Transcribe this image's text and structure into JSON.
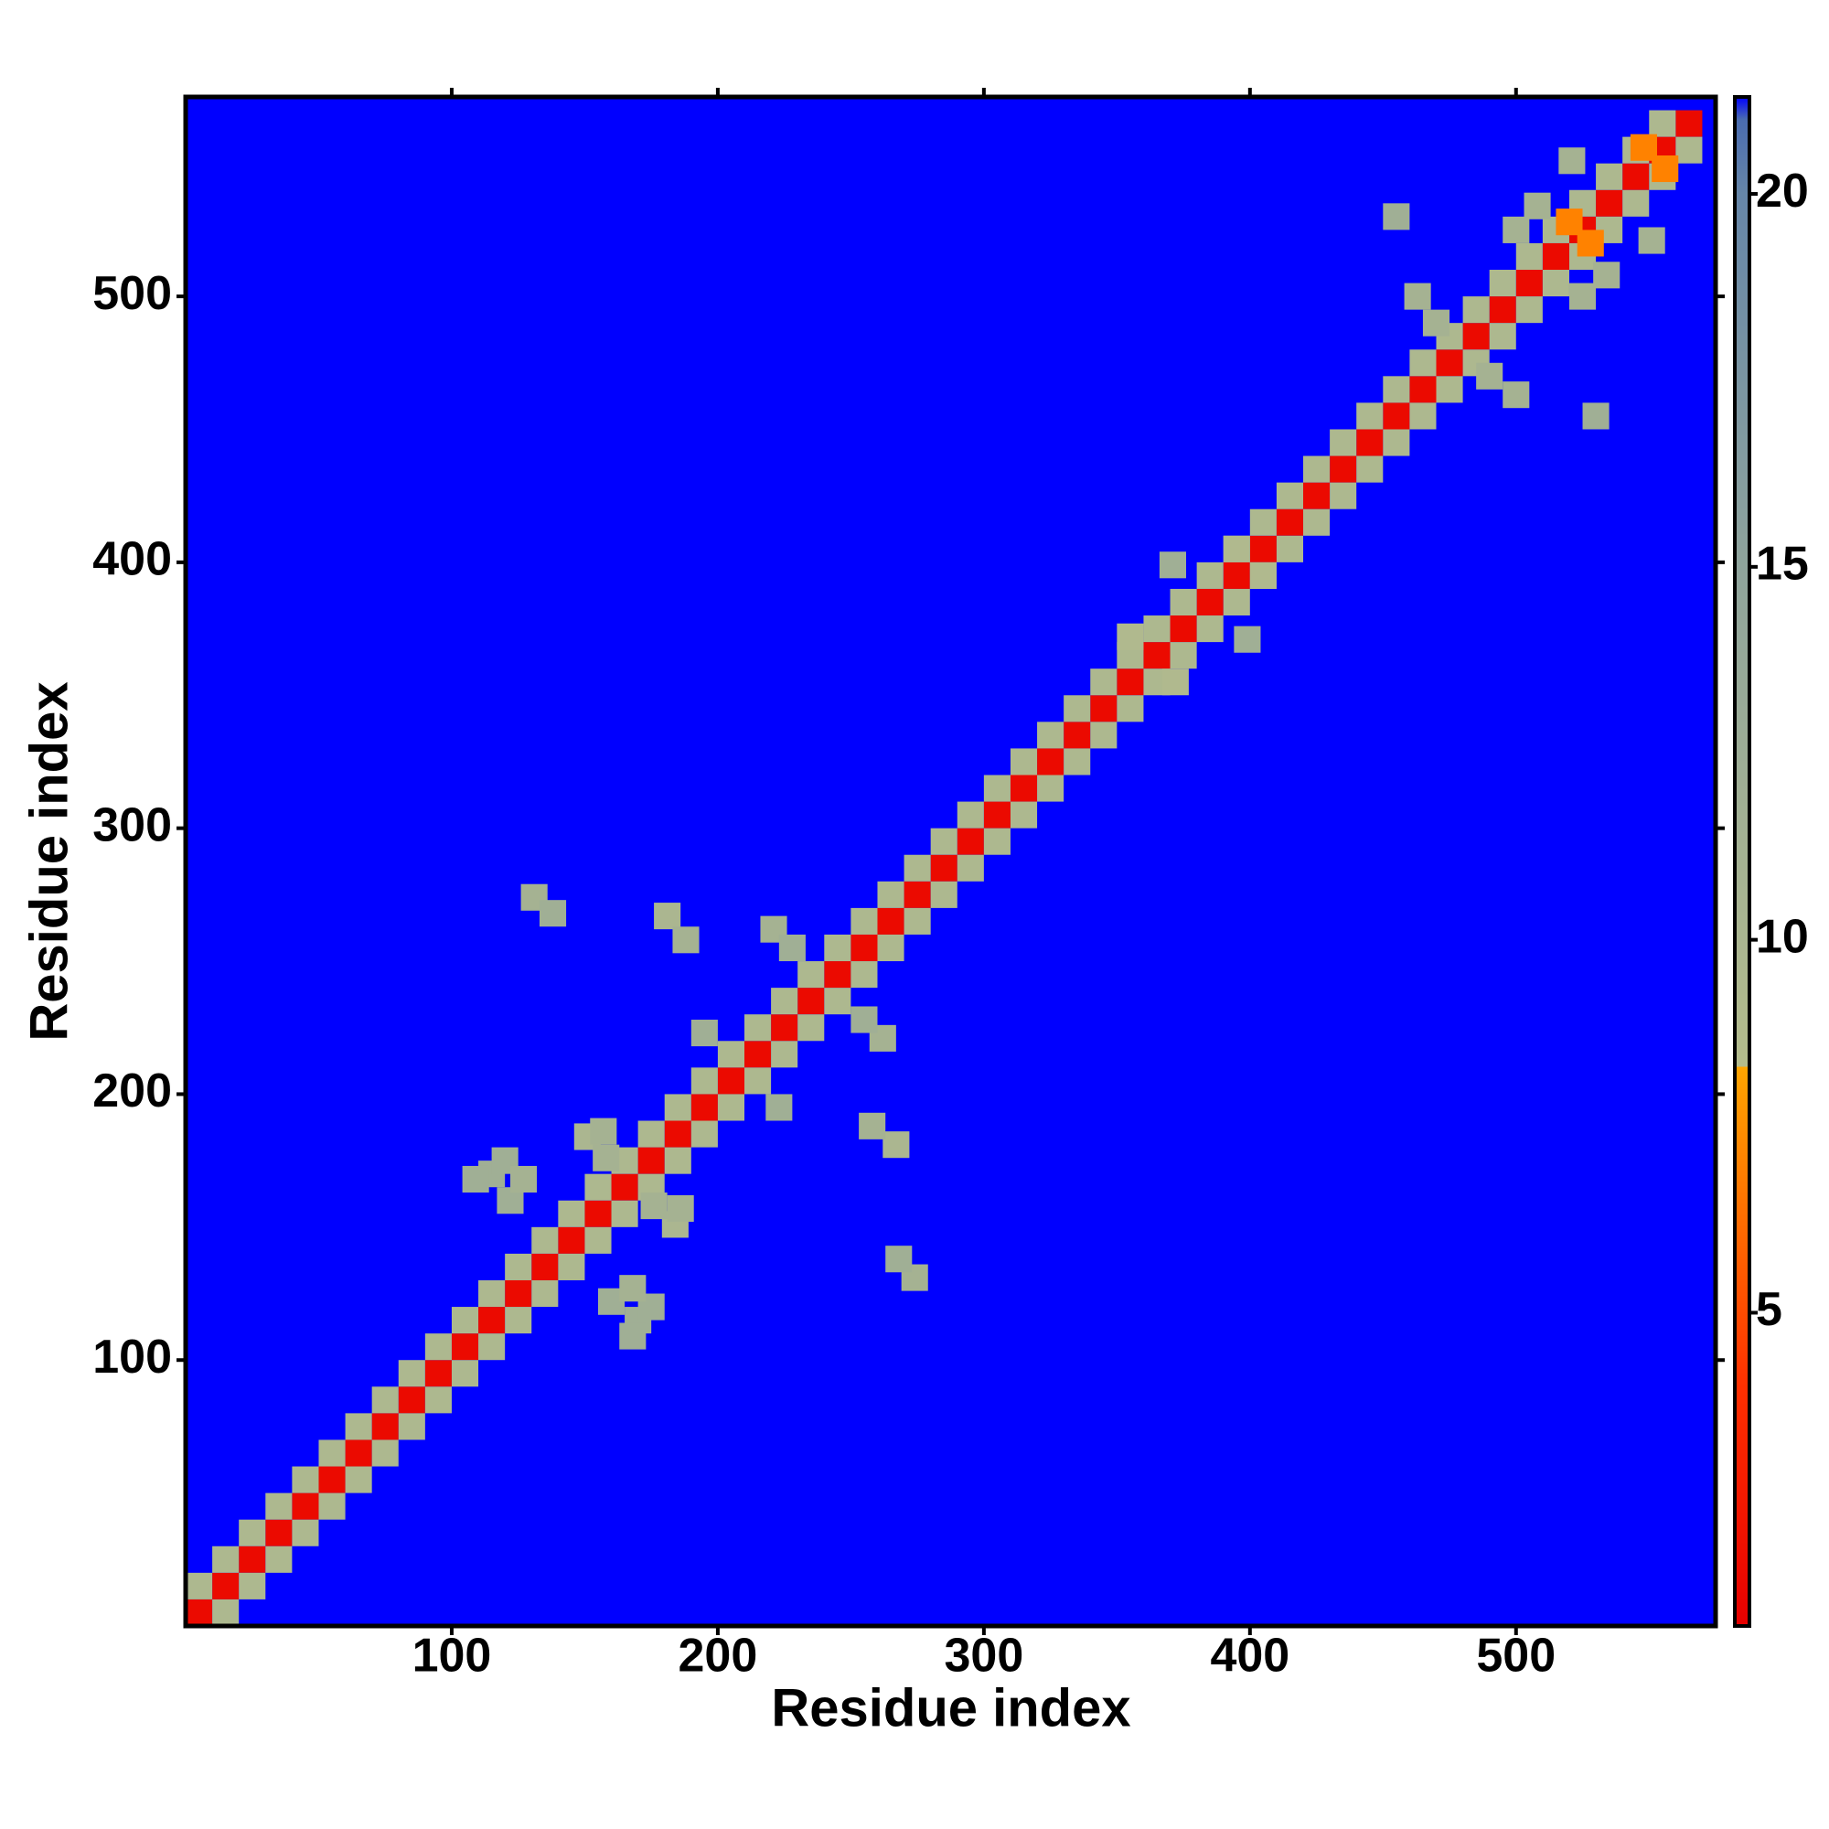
{
  "chart_data": {
    "type": "heatmap",
    "xlabel": "Residue index",
    "ylabel": "Residue index",
    "xlim": [
      0,
      575
    ],
    "ylim": [
      0,
      575
    ],
    "xticks": [
      100,
      200,
      300,
      400,
      500
    ],
    "yticks": [
      100,
      200,
      300,
      400,
      500
    ],
    "zlim": [
      0.8,
      21.3
    ],
    "zticks": [
      5,
      10,
      15,
      20
    ],
    "colorscale": [
      {
        "value": 0.8,
        "color": "#e60000"
      },
      {
        "value": 4,
        "color": "#ff3000"
      },
      {
        "value": 8.3,
        "color": "#ffa500"
      },
      {
        "value": 8.3,
        "color": "#b4bc8c"
      },
      {
        "value": 15,
        "color": "#8fa49c"
      },
      {
        "value": 20,
        "color": "#6686a8"
      },
      {
        "value": 21,
        "color": "#4a6cb0"
      },
      {
        "value": 21.3,
        "color": "#0000ff"
      }
    ],
    "cell": 10,
    "points": [
      [
        5,
        5,
        1.5
      ],
      [
        15,
        15,
        1.5
      ],
      [
        25,
        25,
        1.5
      ],
      [
        35,
        35,
        1.5
      ],
      [
        45,
        45,
        1.5
      ],
      [
        55,
        55,
        1.5
      ],
      [
        65,
        65,
        1.5
      ],
      [
        75,
        75,
        1.5
      ],
      [
        85,
        85,
        1.5
      ],
      [
        95,
        95,
        1.5
      ],
      [
        105,
        105,
        1.5
      ],
      [
        115,
        115,
        1.5
      ],
      [
        125,
        125,
        1.5
      ],
      [
        135,
        135,
        1.5
      ],
      [
        145,
        145,
        1.5
      ],
      [
        155,
        155,
        1.5
      ],
      [
        165,
        165,
        1.5
      ],
      [
        175,
        175,
        1.5
      ],
      [
        185,
        185,
        1.5
      ],
      [
        195,
        195,
        1.5
      ],
      [
        205,
        205,
        1.5
      ],
      [
        215,
        215,
        1.5
      ],
      [
        225,
        225,
        1.5
      ],
      [
        235,
        235,
        1.5
      ],
      [
        245,
        245,
        1.5
      ],
      [
        255,
        255,
        1.5
      ],
      [
        265,
        265,
        1.5
      ],
      [
        275,
        275,
        1.5
      ],
      [
        285,
        285,
        1.5
      ],
      [
        295,
        295,
        1.5
      ],
      [
        305,
        305,
        1.5
      ],
      [
        315,
        315,
        1.5
      ],
      [
        325,
        325,
        1.5
      ],
      [
        335,
        335,
        1.5
      ],
      [
        345,
        345,
        1.5
      ],
      [
        355,
        355,
        1.5
      ],
      [
        365,
        365,
        1.5
      ],
      [
        375,
        375,
        1.5
      ],
      [
        385,
        385,
        1.5
      ],
      [
        395,
        395,
        1.5
      ],
      [
        405,
        405,
        1.5
      ],
      [
        415,
        415,
        1.5
      ],
      [
        425,
        425,
        1.5
      ],
      [
        435,
        435,
        1.5
      ],
      [
        445,
        445,
        1.5
      ],
      [
        455,
        455,
        1.5
      ],
      [
        465,
        465,
        1.5
      ],
      [
        475,
        475,
        1.5
      ],
      [
        485,
        485,
        1.5
      ],
      [
        495,
        495,
        1.5
      ],
      [
        505,
        505,
        1.5
      ],
      [
        515,
        515,
        1.5
      ],
      [
        525,
        525,
        1.5
      ],
      [
        535,
        535,
        1.5
      ],
      [
        545,
        545,
        1.5
      ],
      [
        555,
        555,
        1.5
      ],
      [
        565,
        565,
        1.5
      ],
      [
        5,
        15,
        9.5
      ],
      [
        15,
        25,
        9.5
      ],
      [
        25,
        35,
        9.5
      ],
      [
        35,
        45,
        9.5
      ],
      [
        45,
        55,
        9.5
      ],
      [
        55,
        65,
        9.5
      ],
      [
        65,
        75,
        9.5
      ],
      [
        75,
        85,
        9.5
      ],
      [
        85,
        95,
        9.5
      ],
      [
        95,
        105,
        9.5
      ],
      [
        105,
        115,
        9.5
      ],
      [
        115,
        125,
        9.5
      ],
      [
        125,
        135,
        9.5
      ],
      [
        135,
        145,
        9.5
      ],
      [
        145,
        155,
        9.5
      ],
      [
        155,
        165,
        9.5
      ],
      [
        165,
        175,
        9.5
      ],
      [
        175,
        185,
        9.5
      ],
      [
        185,
        195,
        9.5
      ],
      [
        195,
        205,
        9.5
      ],
      [
        205,
        215,
        9.5
      ],
      [
        215,
        225,
        9.5
      ],
      [
        225,
        235,
        9.5
      ],
      [
        235,
        245,
        9.5
      ],
      [
        245,
        255,
        9.5
      ],
      [
        255,
        265,
        9.5
      ],
      [
        265,
        275,
        9.5
      ],
      [
        275,
        285,
        9.5
      ],
      [
        285,
        295,
        9.5
      ],
      [
        295,
        305,
        9.5
      ],
      [
        305,
        315,
        9.5
      ],
      [
        315,
        325,
        9.5
      ],
      [
        325,
        335,
        9.5
      ],
      [
        335,
        345,
        9.5
      ],
      [
        345,
        355,
        9.5
      ],
      [
        355,
        365,
        9.5
      ],
      [
        365,
        375,
        9.5
      ],
      [
        375,
        385,
        9.5
      ],
      [
        385,
        395,
        9.5
      ],
      [
        395,
        405,
        9.5
      ],
      [
        405,
        415,
        9.5
      ],
      [
        415,
        425,
        9.5
      ],
      [
        425,
        435,
        9.5
      ],
      [
        435,
        445,
        9.5
      ],
      [
        445,
        455,
        9.5
      ],
      [
        455,
        465,
        9.5
      ],
      [
        465,
        475,
        9.5
      ],
      [
        475,
        485,
        9.5
      ],
      [
        485,
        495,
        9.5
      ],
      [
        495,
        505,
        9.5
      ],
      [
        505,
        515,
        9.5
      ],
      [
        515,
        525,
        9.5
      ],
      [
        525,
        535,
        9.5
      ],
      [
        535,
        545,
        9.5
      ],
      [
        545,
        555,
        9.5
      ],
      [
        555,
        565,
        9.5
      ],
      [
        15,
        5,
        9.5
      ],
      [
        25,
        15,
        9.5
      ],
      [
        35,
        25,
        9.5
      ],
      [
        45,
        35,
        9.5
      ],
      [
        55,
        45,
        9.5
      ],
      [
        65,
        55,
        9.5
      ],
      [
        75,
        65,
        9.5
      ],
      [
        85,
        75,
        9.5
      ],
      [
        95,
        85,
        9.5
      ],
      [
        105,
        95,
        9.5
      ],
      [
        115,
        105,
        9.5
      ],
      [
        125,
        115,
        9.5
      ],
      [
        135,
        125,
        9.5
      ],
      [
        145,
        135,
        9.5
      ],
      [
        155,
        145,
        9.5
      ],
      [
        165,
        155,
        9.5
      ],
      [
        175,
        165,
        9.5
      ],
      [
        185,
        175,
        9.5
      ],
      [
        195,
        185,
        9.5
      ],
      [
        205,
        195,
        9.5
      ],
      [
        215,
        205,
        9.5
      ],
      [
        225,
        215,
        9.5
      ],
      [
        235,
        225,
        9.5
      ],
      [
        245,
        235,
        9.5
      ],
      [
        255,
        245,
        9.5
      ],
      [
        265,
        255,
        9.5
      ],
      [
        275,
        265,
        9.5
      ],
      [
        285,
        275,
        9.5
      ],
      [
        295,
        285,
        9.5
      ],
      [
        305,
        295,
        9.5
      ],
      [
        315,
        305,
        9.5
      ],
      [
        325,
        315,
        9.5
      ],
      [
        335,
        325,
        9.5
      ],
      [
        345,
        335,
        9.5
      ],
      [
        355,
        345,
        9.5
      ],
      [
        365,
        355,
        9.5
      ],
      [
        375,
        365,
        9.5
      ],
      [
        385,
        375,
        9.5
      ],
      [
        395,
        385,
        9.5
      ],
      [
        405,
        395,
        9.5
      ],
      [
        415,
        405,
        9.5
      ],
      [
        425,
        415,
        9.5
      ],
      [
        435,
        425,
        9.5
      ],
      [
        445,
        435,
        9.5
      ],
      [
        455,
        445,
        9.5
      ],
      [
        465,
        455,
        9.5
      ],
      [
        475,
        465,
        9.5
      ],
      [
        485,
        475,
        9.5
      ],
      [
        495,
        485,
        9.5
      ],
      [
        505,
        495,
        9.5
      ],
      [
        515,
        505,
        9.5
      ],
      [
        525,
        515,
        9.5
      ],
      [
        535,
        525,
        9.5
      ],
      [
        545,
        535,
        9.5
      ],
      [
        555,
        545,
        9.5
      ],
      [
        565,
        555,
        9.5
      ],
      [
        131,
        274,
        11
      ],
      [
        138,
        268,
        12
      ],
      [
        274,
        131,
        11
      ],
      [
        268,
        138,
        12
      ],
      [
        181,
        267,
        10
      ],
      [
        188,
        258,
        11
      ],
      [
        267,
        181,
        10
      ],
      [
        258,
        188,
        11
      ],
      [
        221,
        262,
        11
      ],
      [
        228,
        255,
        12
      ],
      [
        262,
        221,
        11
      ],
      [
        255,
        228,
        12
      ],
      [
        115,
        170,
        12
      ],
      [
        122,
        160,
        12
      ],
      [
        170,
        115,
        12
      ],
      [
        160,
        122,
        12
      ],
      [
        151,
        184,
        10
      ],
      [
        158,
        176,
        11
      ],
      [
        184,
        151,
        10
      ],
      [
        176,
        158,
        11
      ],
      [
        186,
        157,
        11
      ],
      [
        157,
        186,
        11
      ],
      [
        175,
        120,
        12
      ],
      [
        120,
        175,
        12
      ],
      [
        168,
        127,
        11
      ],
      [
        127,
        168,
        11
      ],
      [
        168,
        109,
        12
      ],
      [
        109,
        168,
        12
      ],
      [
        195,
        223,
        12
      ],
      [
        223,
        195,
        12
      ],
      [
        455,
        530,
        12
      ],
      [
        530,
        455,
        12
      ],
      [
        463,
        500,
        11
      ],
      [
        500,
        463,
        11
      ],
      [
        470,
        490,
        11
      ],
      [
        490,
        470,
        11
      ],
      [
        525,
        500,
        11
      ],
      [
        500,
        525,
        11
      ],
      [
        551,
        521,
        11
      ],
      [
        521,
        551,
        11
      ],
      [
        534,
        508,
        11
      ],
      [
        508,
        534,
        11
      ],
      [
        371,
        399,
        12
      ],
      [
        399,
        371,
        12
      ],
      [
        372,
        355,
        9
      ],
      [
        355,
        372,
        9
      ],
      [
        405,
        395,
        9
      ],
      [
        395,
        405,
        9
      ],
      [
        556,
        548,
        7
      ],
      [
        548,
        556,
        7
      ],
      [
        520,
        528,
        7
      ],
      [
        528,
        520,
        7
      ]
    ]
  }
}
